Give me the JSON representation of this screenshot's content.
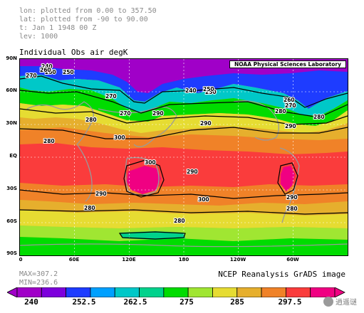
{
  "header": {
    "lon": "lon: plotted from 0.00 to 357.50",
    "lat": "lat: plotted from -90 to 90.00",
    "time": "t: Jan 1 1948 00 Z",
    "lev": "lev: 1000"
  },
  "title": "Individual Obs air degK",
  "lab_credit": "NOAA Physical Sciences Laboratory",
  "y_ticks": [
    "90N",
    "60N",
    "30N",
    "EQ",
    "30S",
    "60S",
    "90S"
  ],
  "x_ticks": [
    "0",
    "60E",
    "120E",
    "180",
    "120W",
    "60W"
  ],
  "stats": {
    "max": "MAX=307.2",
    "min": "MIN=236.6"
  },
  "credit": "NCEP Reanalysis GrADS image",
  "contour_labels": [
    {
      "t": "240"
    },
    {
      "t": "260"
    },
    {
      "t": "270"
    },
    {
      "t": "250"
    },
    {
      "t": "260"
    },
    {
      "t": "270"
    },
    {
      "t": "270"
    },
    {
      "t": "250"
    },
    {
      "t": "240"
    },
    {
      "t": "250"
    },
    {
      "t": "260"
    },
    {
      "t": "270"
    },
    {
      "t": "280"
    },
    {
      "t": "280"
    },
    {
      "t": "290"
    },
    {
      "t": "290"
    },
    {
      "t": "280"
    },
    {
      "t": "290"
    },
    {
      "t": "280"
    },
    {
      "t": "300"
    },
    {
      "t": "300"
    },
    {
      "t": "290"
    },
    {
      "t": "290"
    },
    {
      "t": "300"
    },
    {
      "t": "290"
    },
    {
      "t": "280"
    },
    {
      "t": "280"
    },
    {
      "t": "280"
    }
  ],
  "colorbar": {
    "colors": [
      "#a000c8",
      "#7d00dc",
      "#1e3cff",
      "#00a0ff",
      "#00c8c8",
      "#00d28c",
      "#00dc00",
      "#a0e632",
      "#e6dc32",
      "#e6af2d",
      "#f08228",
      "#fa3c3c",
      "#f00082"
    ],
    "labels": [
      "240",
      "252.5",
      "262.5",
      "275",
      "285",
      "297.5"
    ]
  },
  "watermark": "逍遥谜"
}
